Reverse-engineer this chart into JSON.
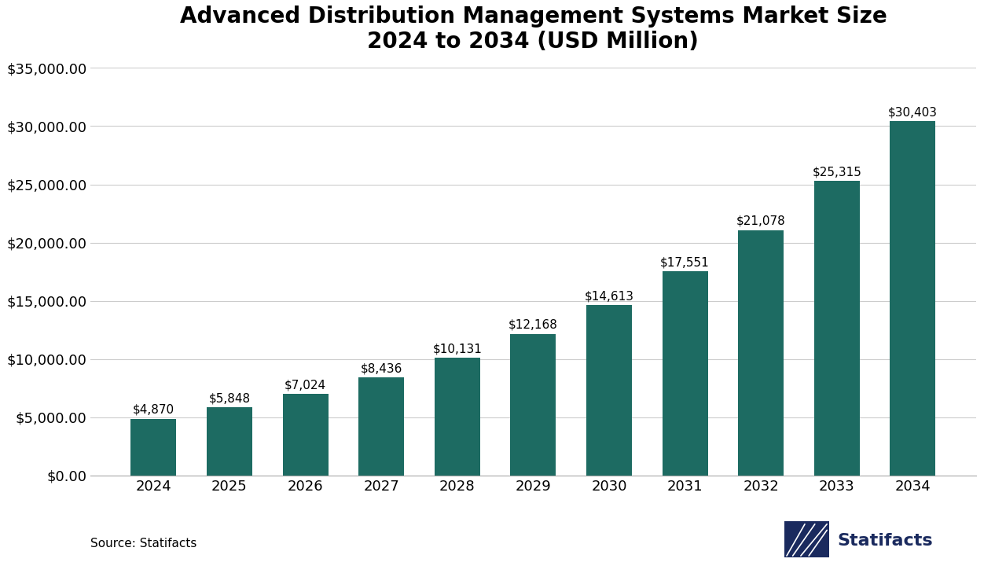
{
  "title": "Advanced Distribution Management Systems Market Size\n2024 to 2034 (USD Million)",
  "years": [
    2024,
    2025,
    2026,
    2027,
    2028,
    2029,
    2030,
    2031,
    2032,
    2033,
    2034
  ],
  "values": [
    4870,
    5848,
    7024,
    8436,
    10131,
    12168,
    14613,
    17551,
    21078,
    25315,
    30403
  ],
  "labels": [
    "$4,870",
    "$5,848",
    "$7,024",
    "$8,436",
    "$10,131",
    "$12,168",
    "$14,613",
    "$17,551",
    "$21,078",
    "$25,315",
    "$30,403"
  ],
  "bar_color": "#1d6b62",
  "background_color": "#ffffff",
  "title_fontsize": 20,
  "tick_fontsize": 13,
  "label_fontsize": 11,
  "source_text": "Source: Statifacts",
  "statifacts_text": "Statifacts",
  "statifacts_color": "#1a2a5e",
  "ylim": [
    0,
    35000
  ],
  "yticks": [
    0,
    5000,
    10000,
    15000,
    20000,
    25000,
    30000,
    35000
  ]
}
